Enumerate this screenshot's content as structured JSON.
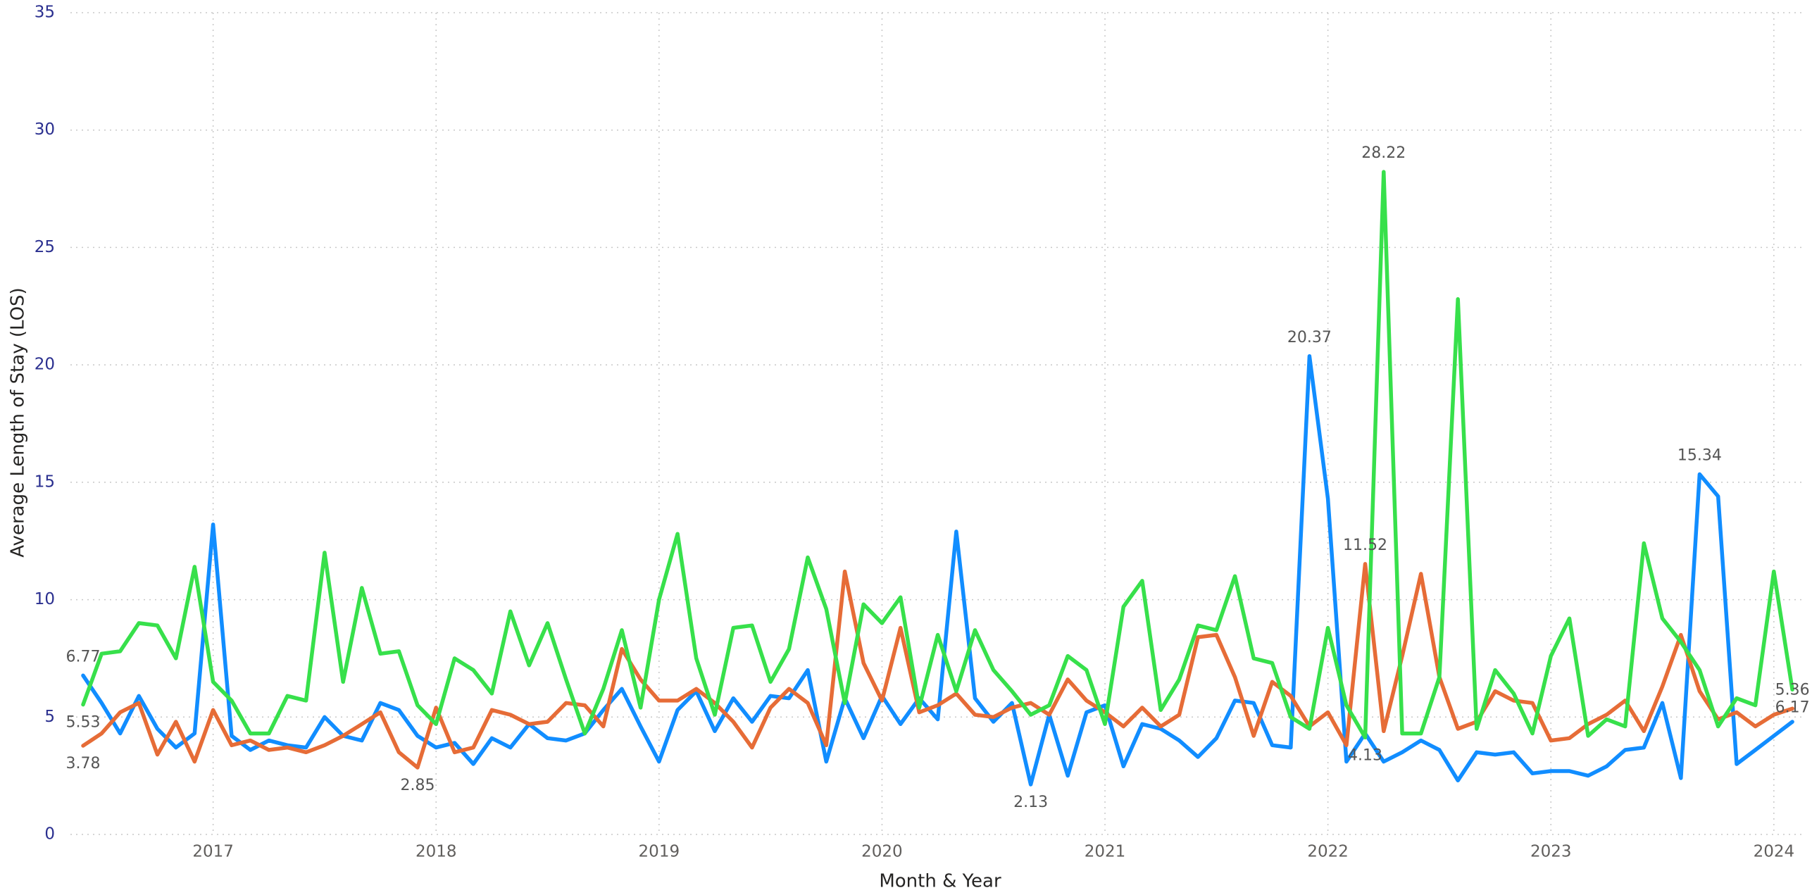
{
  "chart_data": {
    "type": "line",
    "x_label": "Month & Year",
    "y_label": "Average Length of Stay (LOS)",
    "x": [
      2016.417,
      2016.5,
      2016.583,
      2016.667,
      2016.75,
      2016.833,
      2016.917,
      2017.0,
      2017.083,
      2017.167,
      2017.25,
      2017.333,
      2017.417,
      2017.5,
      2017.583,
      2017.667,
      2017.75,
      2017.833,
      2017.917,
      2018.0,
      2018.083,
      2018.167,
      2018.25,
      2018.333,
      2018.417,
      2018.5,
      2018.583,
      2018.667,
      2018.75,
      2018.833,
      2018.917,
      2019.0,
      2019.083,
      2019.167,
      2019.25,
      2019.333,
      2019.417,
      2019.5,
      2019.583,
      2019.667,
      2019.75,
      2019.833,
      2019.917,
      2020.0,
      2020.083,
      2020.167,
      2020.25,
      2020.333,
      2020.417,
      2020.5,
      2020.583,
      2020.667,
      2020.75,
      2020.833,
      2020.917,
      2021.0,
      2021.083,
      2021.167,
      2021.25,
      2021.333,
      2021.417,
      2021.5,
      2021.583,
      2021.667,
      2021.75,
      2021.833,
      2021.917,
      2022.0,
      2022.083,
      2022.167,
      2022.25,
      2022.333,
      2022.417,
      2022.5,
      2022.583,
      2022.667,
      2022.75,
      2022.833,
      2022.917,
      2023.0,
      2023.083,
      2023.167,
      2023.25,
      2023.333,
      2023.417,
      2023.5,
      2023.583,
      2023.667,
      2023.75,
      2023.833,
      2023.917,
      2024.0,
      2024.083
    ],
    "series": [
      {
        "color": "#118DFF",
        "values": [
          6.77,
          5.6,
          4.3,
          5.9,
          4.5,
          3.7,
          4.3,
          13.2,
          4.2,
          3.6,
          4.0,
          3.8,
          3.7,
          5.0,
          4.2,
          4.0,
          5.6,
          5.3,
          4.2,
          3.7,
          3.9,
          3.0,
          4.1,
          3.7,
          4.7,
          4.1,
          4.0,
          4.3,
          5.3,
          6.2,
          4.6,
          3.1,
          5.3,
          6.1,
          4.4,
          5.8,
          4.8,
          5.9,
          5.8,
          7.0,
          3.1,
          5.8,
          4.1,
          5.9,
          4.7,
          5.8,
          4.9,
          12.9,
          5.8,
          4.8,
          5.6,
          2.13,
          5.1,
          2.5,
          5.2,
          5.5,
          2.9,
          4.7,
          4.5,
          4.0,
          3.3,
          4.1,
          5.7,
          5.6,
          3.8,
          3.7,
          20.37,
          14.3,
          3.1,
          4.3,
          3.1,
          3.5,
          4.0,
          3.6,
          2.3,
          3.5,
          3.4,
          3.5,
          2.6,
          2.7,
          2.7,
          2.5,
          2.9,
          3.6,
          3.7,
          5.6,
          2.4,
          15.34,
          14.4,
          3.0,
          3.6,
          4.2,
          4.8
        ],
        "value_labels": [
          "6.77",
          null,
          null,
          null,
          null,
          null,
          null,
          null,
          null,
          null,
          null,
          null,
          null,
          null,
          null,
          null,
          null,
          null,
          null,
          null,
          null,
          null,
          null,
          null,
          null,
          null,
          null,
          null,
          null,
          null,
          null,
          null,
          null,
          null,
          null,
          null,
          null,
          null,
          null,
          null,
          null,
          null,
          null,
          null,
          null,
          null,
          null,
          null,
          null,
          null,
          null,
          "2.13",
          null,
          null,
          null,
          null,
          null,
          null,
          null,
          null,
          null,
          null,
          null,
          null,
          null,
          null,
          "20.37",
          null,
          null,
          null,
          null,
          null,
          null,
          null,
          null,
          null,
          null,
          null,
          null,
          null,
          null,
          null,
          null,
          null,
          null,
          null,
          null,
          "15.34",
          null,
          null,
          null,
          null,
          null
        ]
      },
      {
        "color": "#E66C37",
        "values": [
          3.78,
          4.3,
          5.2,
          5.6,
          3.4,
          4.8,
          3.1,
          5.3,
          3.8,
          4.0,
          3.6,
          3.7,
          3.5,
          3.8,
          4.2,
          4.7,
          5.2,
          3.5,
          2.85,
          5.4,
          3.5,
          3.7,
          5.3,
          5.1,
          4.7,
          4.8,
          5.6,
          5.5,
          4.6,
          7.9,
          6.6,
          5.7,
          5.7,
          6.2,
          5.6,
          4.8,
          3.7,
          5.4,
          6.2,
          5.6,
          3.8,
          11.2,
          7.3,
          5.7,
          8.8,
          5.2,
          5.5,
          6.0,
          5.1,
          5.0,
          5.4,
          5.6,
          5.1,
          6.6,
          5.7,
          5.2,
          4.6,
          5.4,
          4.6,
          5.1,
          8.4,
          8.5,
          6.7,
          4.2,
          6.5,
          5.9,
          4.6,
          5.2,
          3.8,
          11.52,
          4.4,
          7.6,
          11.1,
          6.7,
          4.5,
          4.8,
          6.1,
          5.7,
          5.6,
          4.0,
          4.1,
          4.7,
          5.1,
          5.7,
          4.4,
          6.3,
          8.5,
          6.1,
          4.9,
          5.2,
          4.6,
          5.1,
          5.36
        ],
        "value_labels": [
          "3.78",
          null,
          null,
          null,
          null,
          null,
          null,
          null,
          null,
          null,
          null,
          null,
          null,
          null,
          null,
          null,
          null,
          null,
          "2.85",
          null,
          null,
          null,
          null,
          null,
          null,
          null,
          null,
          null,
          null,
          null,
          null,
          null,
          null,
          null,
          null,
          null,
          null,
          null,
          null,
          null,
          null,
          null,
          null,
          null,
          null,
          null,
          null,
          null,
          null,
          null,
          null,
          null,
          null,
          null,
          null,
          null,
          null,
          null,
          null,
          null,
          null,
          null,
          null,
          null,
          null,
          null,
          null,
          null,
          null,
          "11.52",
          null,
          null,
          null,
          null,
          null,
          null,
          null,
          null,
          null,
          null,
          null,
          null,
          null,
          null,
          null,
          null,
          null,
          null,
          null,
          null,
          null,
          null,
          "5.36"
        ]
      },
      {
        "color": "#37E04B",
        "values": [
          5.53,
          7.7,
          7.8,
          9.0,
          8.9,
          7.5,
          11.4,
          6.5,
          5.7,
          4.3,
          4.3,
          5.9,
          5.7,
          12.0,
          6.5,
          10.5,
          7.7,
          7.8,
          5.5,
          4.7,
          7.5,
          7.0,
          6.0,
          9.5,
          7.2,
          9.0,
          6.6,
          4.3,
          6.2,
          8.7,
          5.4,
          10.0,
          12.8,
          7.5,
          5.1,
          8.8,
          8.9,
          6.5,
          7.9,
          11.8,
          9.6,
          5.6,
          9.8,
          9.0,
          10.1,
          5.4,
          8.5,
          6.1,
          8.7,
          7.0,
          6.1,
          5.1,
          5.5,
          7.6,
          7.0,
          4.7,
          9.7,
          10.8,
          5.3,
          6.6,
          8.9,
          8.7,
          11.0,
          7.5,
          7.3,
          5.0,
          4.5,
          8.8,
          5.5,
          4.13,
          28.22,
          4.3,
          4.3,
          6.7,
          22.8,
          4.5,
          7.0,
          6.0,
          4.3,
          7.6,
          9.2,
          4.2,
          4.9,
          4.6,
          12.4,
          9.2,
          8.2,
          7.0,
          4.6,
          5.8,
          5.5,
          11.2,
          6.17
        ],
        "value_labels": [
          "5.53",
          null,
          null,
          null,
          null,
          null,
          null,
          null,
          null,
          null,
          null,
          null,
          null,
          null,
          null,
          null,
          null,
          null,
          null,
          null,
          null,
          null,
          null,
          null,
          null,
          null,
          null,
          null,
          null,
          null,
          null,
          null,
          null,
          null,
          null,
          null,
          null,
          null,
          null,
          null,
          null,
          null,
          null,
          null,
          null,
          null,
          null,
          null,
          null,
          null,
          null,
          null,
          null,
          null,
          null,
          null,
          null,
          null,
          null,
          null,
          null,
          null,
          null,
          null,
          null,
          null,
          null,
          null,
          null,
          "4.13",
          "28.22",
          null,
          null,
          null,
          null,
          null,
          null,
          null,
          null,
          null,
          null,
          null,
          null,
          null,
          null,
          null,
          null,
          null,
          null,
          null,
          null,
          null,
          "6.17"
        ]
      }
    ],
    "xlim": [
      2016.36,
      2024.13
    ],
    "xticks": [
      2017,
      2018,
      2019,
      2020,
      2021,
      2022,
      2023,
      2024
    ],
    "ylim": [
      0,
      35
    ],
    "yticks": [
      0,
      5,
      10,
      15,
      20,
      25,
      30,
      35
    ],
    "grid": true
  }
}
